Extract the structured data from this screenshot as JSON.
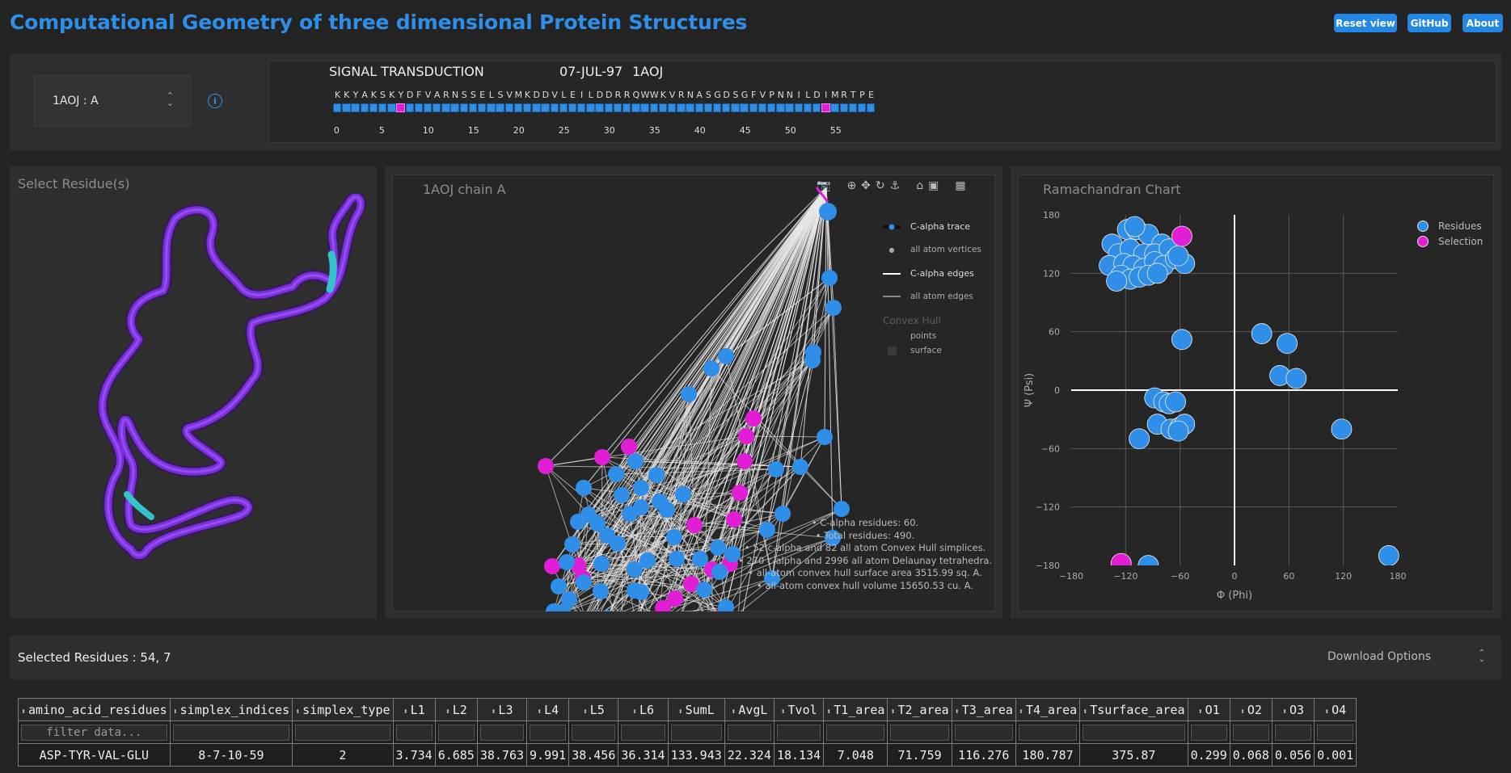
{
  "header": {
    "title": "Computational Geometry of three dimensional Protein Structures",
    "buttons": {
      "reset": "Reset view",
      "github": "GitHub",
      "about": "About"
    }
  },
  "chain_select": {
    "value": "1AOJ : A"
  },
  "sequence": {
    "classification": "SIGNAL TRANSDUCTION",
    "date": "07-JUL-97",
    "pdb_id": "1AOJ",
    "residues": [
      "K",
      "K",
      "Y",
      "A",
      "K",
      "S",
      "K",
      "Y",
      "D",
      "F",
      "V",
      "A",
      "R",
      "N",
      "S",
      "S",
      "E",
      "L",
      "S",
      "V",
      "M",
      "K",
      "D",
      "D",
      "V",
      "L",
      "E",
      "I",
      "L",
      "D",
      "D",
      "R",
      "R",
      "Q",
      "W",
      "W",
      "K",
      "V",
      "R",
      "N",
      "A",
      "S",
      "G",
      "D",
      "S",
      "G",
      "F",
      "V",
      "P",
      "N",
      "N",
      "I",
      "L",
      "D",
      "I",
      "M",
      "R",
      "T",
      "P",
      "E"
    ],
    "selected_positions": [
      7,
      54
    ],
    "ticks": [
      "0",
      "5",
      "10",
      "15",
      "20",
      "25",
      "30",
      "35",
      "40",
      "45",
      "50",
      "55"
    ]
  },
  "residue_panel": {
    "title": "Select Residue(s)"
  },
  "hull_panel": {
    "title": "1AOJ  chain A",
    "legend": {
      "calpha_trace": "C-alpha trace",
      "all_atom_vertices": "all atom vertices",
      "calpha_edges": "C-alpha edges",
      "all_atom_edges": "all atom edges",
      "convex_hull": "Convex Hull",
      "points": "points",
      "surface": "surface"
    },
    "stats": [
      "• C-alpha residues: 60.",
      "• Total residues: 490.",
      "• 52 c-alpha and 82 all atom Convex Hull simplices.",
      "• 270 c-alpha and 2996 all atom Delaunay tetrahedra.",
      "• all-atom convex hull surface area 3515.99 sq. A.",
      "• all-atom convex hull volume 15650.53 cu. A."
    ]
  },
  "chart_data": {
    "type": "scatter",
    "title": "Ramachandran Chart",
    "xlabel": "Φ (Phi)",
    "ylabel": "Ψ (Psi)",
    "xlim": [
      -180,
      180
    ],
    "ylim": [
      -180,
      180
    ],
    "xticks": [
      "−180",
      "−120",
      "−60",
      "0",
      "60",
      "120",
      "180"
    ],
    "yticks": [
      "180",
      "120",
      "60",
      "0",
      "−60",
      "−120",
      "−180"
    ],
    "legend": [
      "Residues",
      "Selection"
    ],
    "series": [
      {
        "name": "Residues",
        "color": "#2f8fe8",
        "points": [
          [
            -135,
            150
          ],
          [
            -118,
            165
          ],
          [
            -108,
            165
          ],
          [
            -95,
            160
          ],
          [
            -80,
            150
          ],
          [
            -128,
            140
          ],
          [
            -115,
            145
          ],
          [
            -100,
            140
          ],
          [
            -88,
            140
          ],
          [
            -72,
            145
          ],
          [
            -138,
            128
          ],
          [
            -122,
            130
          ],
          [
            -112,
            128
          ],
          [
            -100,
            125
          ],
          [
            -88,
            132
          ],
          [
            -78,
            128
          ],
          [
            -65,
            135
          ],
          [
            -55,
            130
          ],
          [
            -125,
            118
          ],
          [
            -115,
            114
          ],
          [
            -105,
            116
          ],
          [
            -95,
            118
          ],
          [
            -85,
            120
          ],
          [
            -130,
            112
          ],
          [
            -62,
            138
          ],
          [
            -58,
            52
          ],
          [
            30,
            58
          ],
          [
            58,
            48
          ],
          [
            50,
            15
          ],
          [
            68,
            12
          ],
          [
            -88,
            -8
          ],
          [
            -78,
            -12
          ],
          [
            -72,
            -14
          ],
          [
            -65,
            -12
          ],
          [
            -85,
            -35
          ],
          [
            -70,
            -40
          ],
          [
            -60,
            -38
          ],
          [
            -55,
            -35
          ],
          [
            -105,
            -50
          ],
          [
            -62,
            -42
          ],
          [
            118,
            -40
          ],
          [
            -95,
            -180
          ],
          [
            170,
            -170
          ],
          [
            -110,
            168
          ]
        ]
      },
      {
        "name": "Selection",
        "color": "#e11ed5",
        "points": [
          [
            -58,
            158
          ],
          [
            -125,
            -178
          ]
        ]
      }
    ]
  },
  "selected_residues": {
    "text": "Selected Residues : 54, 7",
    "download": "Download Options"
  },
  "table": {
    "columns": [
      "amino_acid_residues",
      "simplex_indices",
      "simplex_type",
      "L1",
      "L2",
      "L3",
      "L4",
      "L5",
      "L6",
      "SumL",
      "AvgL",
      "Tvol",
      "T1_area",
      "T2_area",
      "T3_area",
      "T4_area",
      "Tsurface_area",
      "O1",
      "O2",
      "O3",
      "O4"
    ],
    "filter_placeholder": "filter data...",
    "rows": [
      [
        "ASP-TYR-VAL-GLU",
        "8-7-10-59",
        "2",
        "3.734",
        "6.685",
        "38.763",
        "9.991",
        "38.456",
        "36.314",
        "133.943",
        "22.324",
        "18.134",
        "7.048",
        "71.759",
        "116.276",
        "180.787",
        "375.87",
        "0.299",
        "0.068",
        "0.056",
        "0.001"
      ]
    ]
  }
}
